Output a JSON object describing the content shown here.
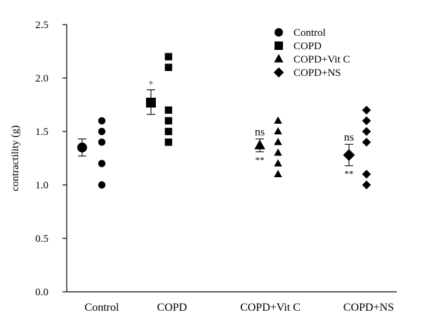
{
  "chart_data": {
    "type": "scatter",
    "ylabel": "contractility (g)",
    "ylim": [
      0,
      2.5
    ],
    "yticks": [
      "0.0",
      "0.5",
      "1.0",
      "1.5",
      "2.0",
      "2.5"
    ],
    "categories": [
      "Control",
      "COPD",
      "COPD+Vit C",
      "COPD+NS"
    ],
    "grid": false,
    "legend_position": "top-right",
    "legend": [
      {
        "label": "Control",
        "marker": "circle"
      },
      {
        "label": "COPD",
        "marker": "square"
      },
      {
        "label": "COPD+Vit C",
        "marker": "triangle"
      },
      {
        "label": "COPD+NS",
        "marker": "diamond"
      }
    ],
    "groups": [
      {
        "category": "Control",
        "marker": "circle",
        "mean": 1.35,
        "err_low": 1.27,
        "err_high": 1.43,
        "points": [
          1.6,
          1.5,
          1.4,
          1.2,
          1.0
        ],
        "annotations_above": [],
        "annotations_below": []
      },
      {
        "category": "COPD",
        "marker": "square",
        "mean": 1.77,
        "err_low": 1.66,
        "err_high": 1.89,
        "points": [
          2.2,
          2.1,
          1.7,
          1.6,
          1.5,
          1.4
        ],
        "annotations_above": [
          "+"
        ],
        "annotations_below": []
      },
      {
        "category": "COPD+Vit C",
        "marker": "triangle",
        "mean": 1.37,
        "err_low": 1.31,
        "err_high": 1.43,
        "points": [
          1.6,
          1.5,
          1.4,
          1.3,
          1.2,
          1.1
        ],
        "annotations_above": [
          "ns"
        ],
        "annotations_below": [
          "**"
        ]
      },
      {
        "category": "COPD+NS",
        "marker": "diamond",
        "mean": 1.28,
        "err_low": 1.18,
        "err_high": 1.38,
        "points": [
          1.7,
          1.6,
          1.5,
          1.4,
          1.1,
          1.0
        ],
        "annotations_above": [
          "ns"
        ],
        "annotations_below": [
          "**"
        ]
      }
    ]
  }
}
